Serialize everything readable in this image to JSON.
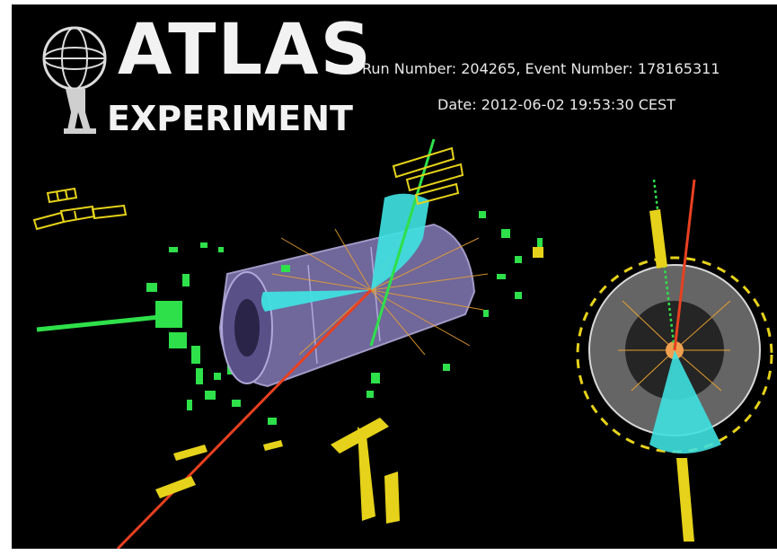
{
  "header": {
    "logo_line1": "ATLAS",
    "logo_line2": "EXPERIMENT",
    "run_info": "Run Number: 204265, Event Number: 178165311",
    "date_info": "Date: 2012-06-02 19:53:30 CEST"
  },
  "icons": {
    "logo": "atlas-globe-figure-icon"
  },
  "colors": {
    "background": "#000000",
    "detector_barrel": "#8a80b8",
    "calorimeter_cells": "#e6d21a",
    "muon_hits": "#2ee04a",
    "electron_cone": "#3fe0e0",
    "tracks": "#e8a030",
    "muon_track": "#e84020",
    "end_view_ring": "#c8c8c8"
  }
}
